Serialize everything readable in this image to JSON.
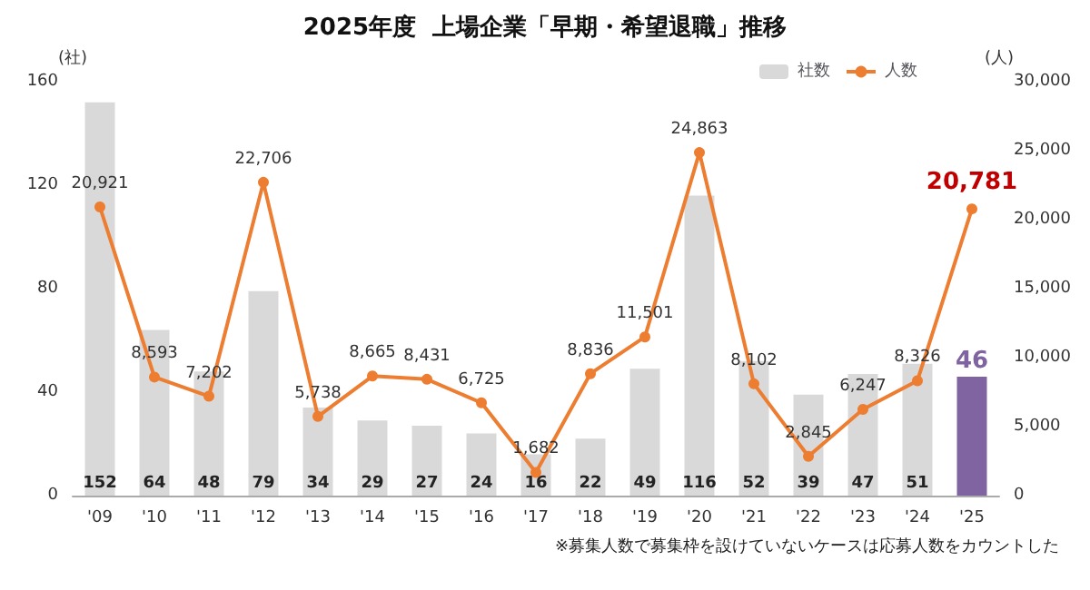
{
  "chart_data": {
    "type": "bar",
    "title": "2025年度  上場企業「早期・希望退職」推移",
    "ylabel": "(社)",
    "y2label": "(人)",
    "categories": [
      "'09",
      "'10",
      "'11",
      "'12",
      "'13",
      "'14",
      "'15",
      "'16",
      "'17",
      "'18",
      "'19",
      "'20",
      "'21",
      "'22",
      "'23",
      "'24",
      "'25"
    ],
    "series": [
      {
        "name": "社数",
        "color": "#d9d9d9",
        "colors": [
          "#d9d9d9",
          "#d9d9d9",
          "#d9d9d9",
          "#d9d9d9",
          "#d9d9d9",
          "#d9d9d9",
          "#d9d9d9",
          "#d9d9d9",
          "#d9d9d9",
          "#d9d9d9",
          "#d9d9d9",
          "#d9d9d9",
          "#d9d9d9",
          "#d9d9d9",
          "#d9d9d9",
          "#d9d9d9",
          "#8064a2"
        ],
        "values": [
          152,
          64,
          48,
          79,
          34,
          29,
          27,
          24,
          16,
          22,
          49,
          116,
          52,
          39,
          47,
          51,
          46
        ],
        "value_labels": [
          "152",
          "64",
          "48",
          "79",
          "34",
          "29",
          "27",
          "24",
          "16",
          "22",
          "49",
          "116",
          "52",
          "39",
          "47",
          "51",
          "46"
        ]
      },
      {
        "name": "人数",
        "type": "line",
        "axis": "y2",
        "color": "#ed7d31",
        "values": [
          20921,
          8593,
          7202,
          22706,
          5738,
          8665,
          8431,
          6725,
          1682,
          8836,
          11501,
          24863,
          8102,
          2845,
          6247,
          8326,
          20781
        ],
        "value_labels": [
          "20,921",
          "8,593",
          "7,202",
          "22,706",
          "5,738",
          "8,665",
          "8,431",
          "6,725",
          "1,682",
          "8,836",
          "11,501",
          "24,863",
          "8,102",
          "2,845",
          "6,247",
          "8,326",
          "20,781"
        ]
      }
    ],
    "ylim": [
      0,
      160
    ],
    "yticks": [
      0,
      40,
      80,
      120,
      160
    ],
    "y2lim": [
      0,
      30000
    ],
    "y2ticks": [
      0,
      {
        "value": 5000,
        "label": "5,000"
      },
      {
        "value": 10000,
        "label": "10,000"
      },
      {
        "value": 15000,
        "label": "15,000"
      },
      {
        "value": 20000,
        "label": "20,000"
      },
      {
        "value": 25000,
        "label": "25,000"
      },
      {
        "value": 30000,
        "label": "30,000"
      }
    ],
    "marker": "circle",
    "legend": "top right",
    "grid": false,
    "annotations": [
      "※募集人数で募集枠を設けていないケースは応募人数をカウントした"
    ]
  }
}
